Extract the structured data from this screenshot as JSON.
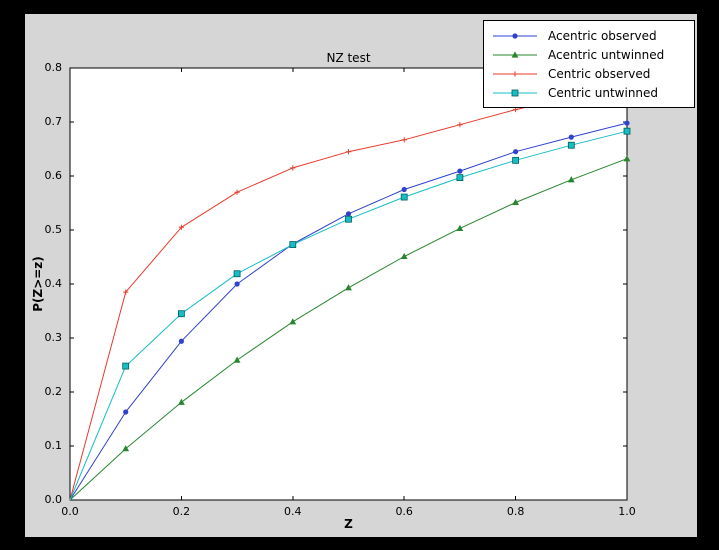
{
  "window": {
    "outer_background": "#000000",
    "figure_background": "#d6d6d6",
    "plot_background": "#ffffff",
    "axis_color": "#000000"
  },
  "chart_data": {
    "type": "line",
    "title": "NZ test",
    "xlabel": "Z",
    "ylabel": "P(Z>=z)",
    "xlim": [
      0.0,
      1.0
    ],
    "ylim": [
      0.0,
      0.8
    ],
    "xtick_labels": [
      "0.0",
      "0.2",
      "0.4",
      "0.6",
      "0.8",
      "1.0"
    ],
    "ytick_labels": [
      "0.0",
      "0.1",
      "0.2",
      "0.3",
      "0.4",
      "0.5",
      "0.6",
      "0.7",
      "0.8"
    ],
    "grid": false,
    "legend_position": "upper right",
    "x": [
      0.0,
      0.1,
      0.2,
      0.3,
      0.4,
      0.5,
      0.6,
      0.7,
      0.8,
      0.9,
      1.0
    ],
    "series": [
      {
        "name": "Acentric observed",
        "color": "#2e41cf",
        "marker": "circle",
        "values": [
          0.0,
          0.163,
          0.294,
          0.4,
          0.474,
          0.53,
          0.575,
          0.609,
          0.645,
          0.672,
          0.698
        ]
      },
      {
        "name": "Acentric untwinned",
        "color": "#27862f",
        "marker": "triangle",
        "values": [
          0.0,
          0.095,
          0.181,
          0.259,
          0.33,
          0.393,
          0.451,
          0.503,
          0.551,
          0.593,
          0.632
        ]
      },
      {
        "name": "Centric observed",
        "color": "#e83a2a",
        "marker": "plus",
        "values": [
          0.0,
          0.385,
          0.505,
          0.57,
          0.615,
          0.645,
          0.667,
          0.695,
          0.723,
          0.746,
          0.763
        ]
      },
      {
        "name": "Centric untwinned",
        "color": "#17bdc5",
        "marker": "square",
        "values": [
          0.0,
          0.248,
          0.345,
          0.419,
          0.473,
          0.52,
          0.561,
          0.597,
          0.629,
          0.657,
          0.683
        ]
      }
    ]
  }
}
